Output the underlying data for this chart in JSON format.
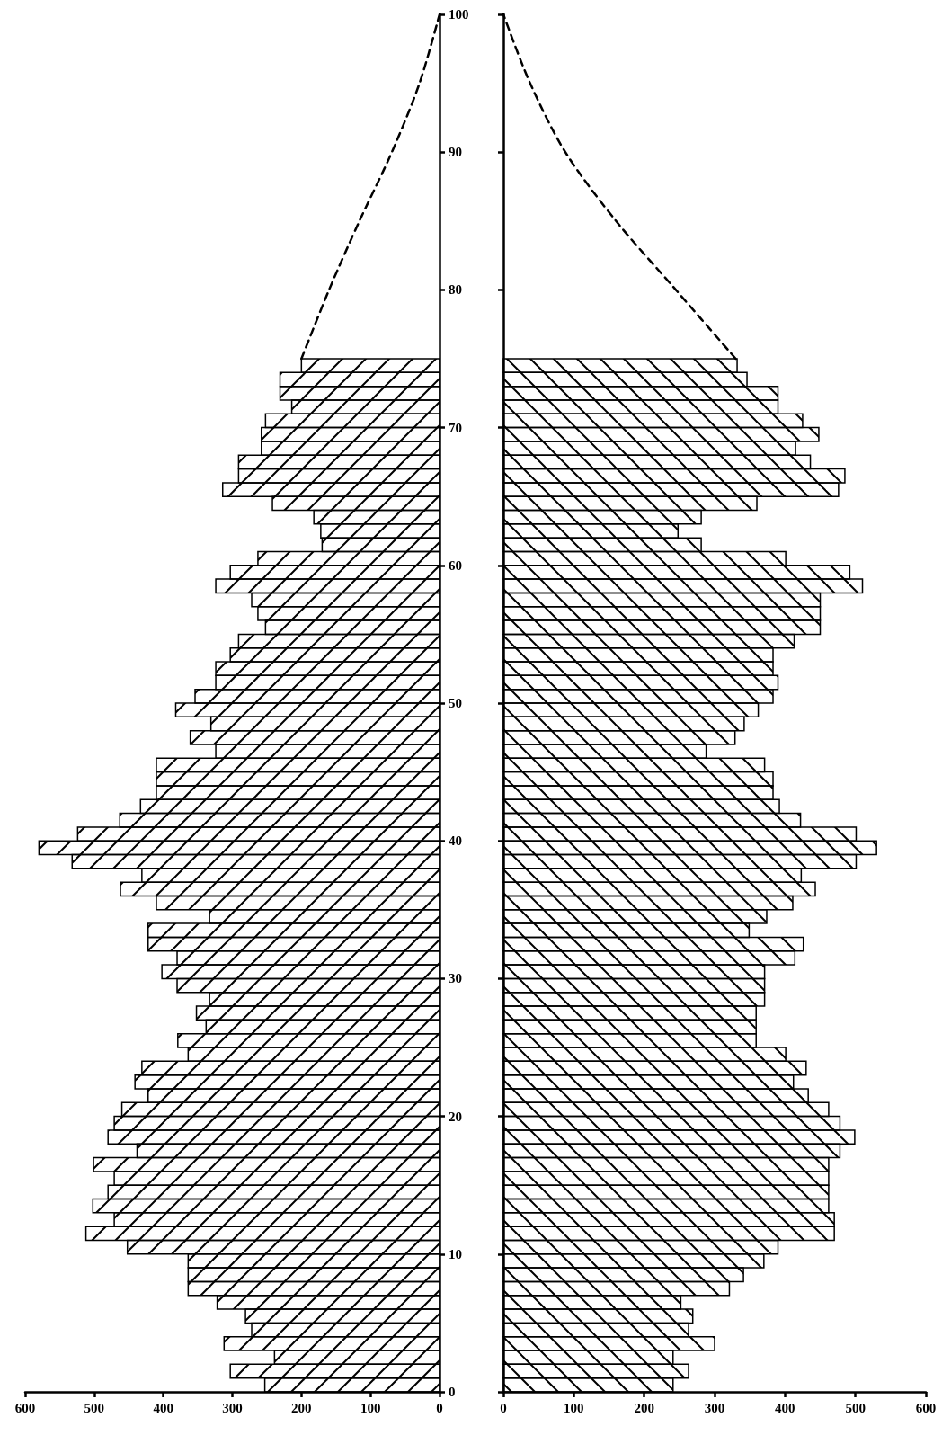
{
  "chart_data": [
    {
      "type": "histogram",
      "orientation": "horizontal",
      "color": "#000000",
      "bins": [
        0,
        1,
        2,
        3,
        4,
        5,
        6,
        7,
        8,
        9,
        10,
        11,
        12,
        13,
        14,
        15,
        16,
        17,
        18,
        19,
        20,
        21,
        22,
        23,
        24,
        25,
        26,
        27,
        28,
        29,
        30,
        31,
        32,
        33,
        34,
        35,
        36,
        37,
        38,
        39,
        40,
        41,
        42,
        43,
        44,
        45,
        46,
        47,
        48,
        49,
        50,
        51,
        52,
        53,
        54,
        55,
        56,
        57,
        58,
        59,
        60,
        61,
        62,
        63,
        64,
        65,
        66,
        67,
        68,
        69,
        70,
        71,
        72,
        73,
        74,
        75
      ],
      "values": [
        253,
        303,
        239,
        312,
        272,
        281,
        322,
        364,
        364,
        364,
        452,
        512,
        471,
        502,
        480,
        471,
        501,
        438,
        480,
        471,
        460,
        422,
        441,
        431,
        364,
        379,
        338,
        352,
        333,
        380,
        402,
        380,
        422,
        422,
        333,
        410,
        462,
        431,
        532,
        580,
        524,
        463,
        433,
        410,
        410,
        410,
        324,
        361,
        331,
        382,
        354,
        324,
        324,
        303,
        291,
        252,
        263,
        272,
        324,
        303,
        263,
        170,
        172,
        182,
        242,
        314,
        291,
        291,
        258,
        258,
        252,
        214,
        231,
        231,
        200
      ],
      "series": [
        {
          "type": "line",
          "color": "#000000",
          "line_style": "dashed",
          "x": [
            75,
            80,
            85,
            90,
            95,
            100
          ],
          "values": [
            200,
            160,
            116,
            69,
            29,
            0
          ]
        }
      ],
      "xlim": [
        600,
        0
      ],
      "xticks": [
        600,
        500,
        400,
        300,
        200,
        100,
        0
      ],
      "ylim": [
        0,
        100
      ],
      "yticks": [
        0,
        10,
        20,
        30,
        40,
        50,
        60,
        70,
        80,
        90,
        100
      ]
    },
    {
      "type": "histogram",
      "orientation": "horizontal",
      "color": "#000000",
      "bins": [
        0,
        1,
        2,
        3,
        4,
        5,
        6,
        7,
        8,
        9,
        10,
        11,
        12,
        13,
        14,
        15,
        16,
        17,
        18,
        19,
        20,
        21,
        22,
        23,
        24,
        25,
        26,
        27,
        28,
        29,
        30,
        31,
        32,
        33,
        34,
        35,
        36,
        37,
        38,
        39,
        40,
        41,
        42,
        43,
        44,
        45,
        46,
        47,
        48,
        49,
        50,
        51,
        52,
        53,
        54,
        55,
        56,
        57,
        58,
        59,
        60,
        61,
        62,
        63,
        64,
        65,
        66,
        67,
        68,
        69,
        70,
        71,
        72,
        73,
        74,
        75
      ],
      "values": [
        241,
        263,
        241,
        300,
        263,
        269,
        252,
        321,
        341,
        370,
        390,
        470,
        470,
        462,
        462,
        462,
        462,
        478,
        499,
        478,
        462,
        433,
        412,
        430,
        401,
        359,
        359,
        359,
        371,
        371,
        371,
        414,
        426,
        349,
        374,
        411,
        443,
        423,
        501,
        530,
        501,
        422,
        392,
        383,
        383,
        371,
        288,
        329,
        342,
        362,
        383,
        390,
        383,
        383,
        413,
        450,
        450,
        450,
        510,
        492,
        401,
        281,
        248,
        281,
        360,
        476,
        485,
        436,
        415,
        448,
        425,
        390,
        390,
        346,
        332
      ],
      "series": [
        {
          "type": "line",
          "color": "#000000",
          "line_style": "dashed",
          "x": [
            75,
            80,
            85,
            90,
            95,
            100
          ],
          "values": [
            330,
            245,
            160,
            88,
            38,
            0
          ]
        }
      ],
      "xlim": [
        0,
        600
      ],
      "xticks": [
        0,
        100,
        200,
        300,
        400,
        500,
        600
      ],
      "ylim": [
        0,
        100
      ],
      "yticks": [
        0,
        10,
        20,
        30,
        40,
        50,
        60,
        70,
        80,
        90,
        100
      ],
      "tick_labels": "x"
    }
  ]
}
